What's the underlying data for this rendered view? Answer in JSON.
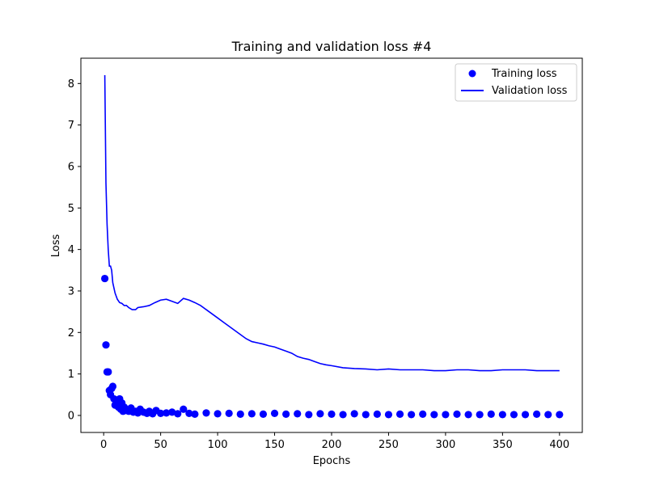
{
  "chart_data": {
    "type": "scatter+line",
    "title": "Training and validation loss #4",
    "xlabel": "Epochs",
    "ylabel": "Loss",
    "xlim": [
      -20,
      420
    ],
    "ylim": [
      -0.41,
      8.61
    ],
    "xticks": [
      0,
      50,
      100,
      150,
      200,
      250,
      300,
      350,
      400
    ],
    "yticks": [
      0,
      1,
      2,
      3,
      4,
      5,
      6,
      7,
      8
    ],
    "grid": false,
    "legend_position": "top-right",
    "color": "#0000ff",
    "series": [
      {
        "name": "Training loss",
        "style": "markers",
        "x": [
          1,
          2,
          3,
          4,
          5,
          6,
          7,
          8,
          9,
          10,
          11,
          12,
          13,
          14,
          15,
          16,
          17,
          18,
          19,
          20,
          22,
          24,
          26,
          28,
          30,
          32,
          35,
          38,
          40,
          43,
          46,
          50,
          55,
          60,
          65,
          70,
          75,
          80,
          90,
          100,
          110,
          120,
          130,
          140,
          150,
          160,
          170,
          180,
          190,
          200,
          210,
          220,
          230,
          240,
          250,
          260,
          270,
          280,
          290,
          300,
          310,
          320,
          330,
          340,
          350,
          360,
          370,
          380,
          390,
          400
        ],
        "values": [
          3.3,
          1.7,
          1.05,
          1.05,
          0.6,
          0.5,
          0.65,
          0.7,
          0.4,
          0.25,
          0.3,
          0.35,
          0.2,
          0.4,
          0.15,
          0.3,
          0.1,
          0.2,
          0.15,
          0.12,
          0.1,
          0.18,
          0.08,
          0.1,
          0.06,
          0.15,
          0.08,
          0.05,
          0.1,
          0.04,
          0.12,
          0.05,
          0.06,
          0.08,
          0.04,
          0.15,
          0.05,
          0.03,
          0.06,
          0.04,
          0.05,
          0.03,
          0.04,
          0.03,
          0.05,
          0.03,
          0.04,
          0.02,
          0.04,
          0.03,
          0.02,
          0.04,
          0.02,
          0.03,
          0.02,
          0.03,
          0.02,
          0.03,
          0.02,
          0.02,
          0.03,
          0.02,
          0.02,
          0.03,
          0.02,
          0.02,
          0.02,
          0.03,
          0.02,
          0.02
        ]
      },
      {
        "name": "Validation loss",
        "style": "line",
        "x": [
          1,
          2,
          3,
          4,
          5,
          6,
          7,
          8,
          10,
          12,
          14,
          16,
          18,
          20,
          22,
          25,
          28,
          30,
          35,
          40,
          45,
          50,
          55,
          60,
          65,
          70,
          75,
          80,
          85,
          90,
          95,
          100,
          105,
          110,
          115,
          120,
          125,
          130,
          135,
          140,
          145,
          150,
          155,
          160,
          165,
          170,
          175,
          180,
          185,
          190,
          195,
          200,
          210,
          220,
          230,
          240,
          250,
          260,
          270,
          280,
          290,
          300,
          310,
          320,
          330,
          340,
          350,
          360,
          370,
          380,
          390,
          400
        ],
        "values": [
          8.2,
          5.6,
          4.6,
          4.0,
          3.6,
          3.6,
          3.5,
          3.2,
          2.95,
          2.8,
          2.72,
          2.7,
          2.65,
          2.65,
          2.6,
          2.55,
          2.55,
          2.6,
          2.62,
          2.65,
          2.72,
          2.78,
          2.8,
          2.75,
          2.7,
          2.82,
          2.78,
          2.72,
          2.65,
          2.55,
          2.45,
          2.35,
          2.25,
          2.15,
          2.05,
          1.95,
          1.85,
          1.78,
          1.75,
          1.72,
          1.68,
          1.65,
          1.6,
          1.55,
          1.5,
          1.42,
          1.38,
          1.35,
          1.3,
          1.25,
          1.22,
          1.2,
          1.15,
          1.13,
          1.12,
          1.1,
          1.12,
          1.1,
          1.1,
          1.1,
          1.08,
          1.08,
          1.1,
          1.1,
          1.08,
          1.08,
          1.1,
          1.1,
          1.1,
          1.08,
          1.08,
          1.08
        ]
      }
    ]
  }
}
